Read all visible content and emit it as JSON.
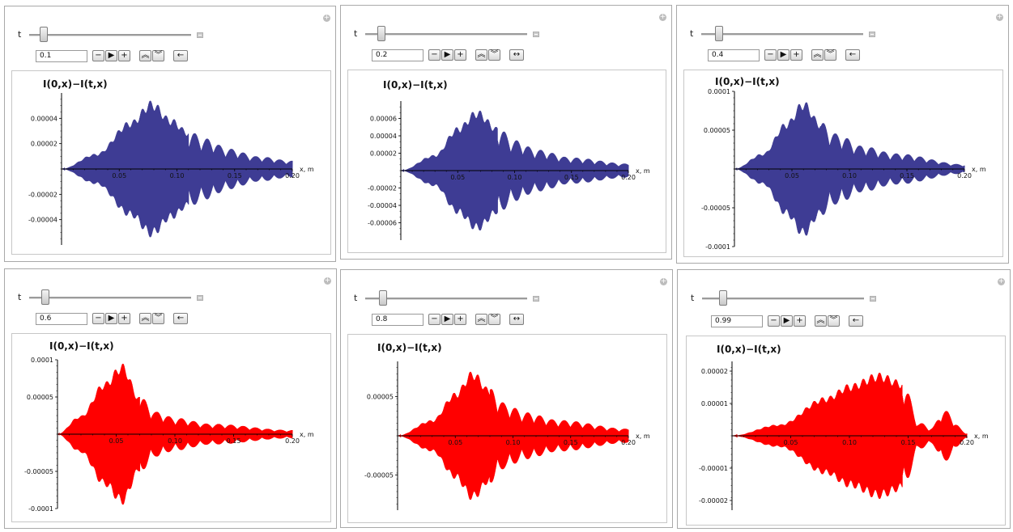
{
  "controls": {
    "param_name": "t",
    "buttons": {
      "decrement": "−",
      "play": "▶",
      "increment": "+",
      "faster": "︽",
      "slower": "︾",
      "direction_backward": "←",
      "direction_bounce": "↔"
    }
  },
  "panels": [
    {
      "t_value": "0.1",
      "slider_fraction": 0.09,
      "direction": "←",
      "color": "#3e3c94"
    },
    {
      "t_value": "0.2",
      "slider_fraction": 0.1,
      "direction": "↔",
      "color": "#3e3c94"
    },
    {
      "t_value": "0.4",
      "slider_fraction": 0.11,
      "direction": "←",
      "color": "#3e3c94"
    },
    {
      "t_value": "0.6",
      "slider_fraction": 0.1,
      "direction": "←",
      "color": "#ff0000"
    },
    {
      "t_value": "0.8",
      "slider_fraction": 0.11,
      "direction": "↔",
      "color": "#ff0000"
    },
    {
      "t_value": "0.99",
      "slider_fraction": 0.13,
      "direction": "←",
      "color": "#ff0000"
    }
  ],
  "chart_data": [
    {
      "type": "area",
      "title": "I(0,x)−I(t,x)",
      "xlabel": "x, m",
      "ylabel": "",
      "xlim": [
        0,
        0.2
      ],
      "ylim": [
        -6e-05,
        6e-05
      ],
      "xticks": [
        "0.05",
        "0.10",
        "0.15",
        "0.20"
      ],
      "yticks": [
        {
          "v": 4e-05,
          "label": "0.00004"
        },
        {
          "v": 2e-05,
          "label": "0.00002"
        },
        {
          "v": -2e-05,
          "label": "-0.00002"
        },
        {
          "v": -4e-05,
          "label": "-0.00004"
        }
      ],
      "color": "#3e3c94",
      "series": [
        {
          "x": [
            0,
            0.03,
            0.06,
            0.078,
            0.095,
            0.11,
            0.125,
            0.145,
            0.17,
            0.2
          ],
          "values": [
            0,
            1.2e-05,
            3.8e-05,
            5.4e-05,
            4e-05,
            3e-05,
            2.4e-05,
            1.6e-05,
            1e-05,
            6.5e-06
          ]
        }
      ]
    },
    {
      "type": "area",
      "title": "I(0,x)−I(t,x)",
      "xlabel": "x, m",
      "ylabel": "",
      "xlim": [
        0,
        0.2
      ],
      "ylim": [
        -8e-05,
        8e-05
      ],
      "xticks": [
        "0.05",
        "0.10",
        "0.15",
        "0.20"
      ],
      "yticks": [
        {
          "v": 6e-05,
          "label": "0.00006"
        },
        {
          "v": 4e-05,
          "label": "0.00004"
        },
        {
          "v": 2e-05,
          "label": "0.00002"
        },
        {
          "v": -2e-05,
          "label": "-0.00002"
        },
        {
          "v": -4e-05,
          "label": "-0.00004"
        },
        {
          "v": -6e-05,
          "label": "-0.00006"
        }
      ],
      "color": "#3e3c94",
      "series": [
        {
          "x": [
            0,
            0.03,
            0.05,
            0.067,
            0.085,
            0.1,
            0.12,
            0.15,
            0.2
          ],
          "values": [
            0,
            1.8e-05,
            5e-05,
            7e-05,
            5e-05,
            3.5e-05,
            2.4e-05,
            1.5e-05,
            8e-06
          ]
        }
      ]
    },
    {
      "type": "area",
      "title": "I(0,x)−I(t,x)",
      "xlabel": "x, m",
      "ylabel": "",
      "xlim": [
        0,
        0.2
      ],
      "ylim": [
        -0.0001,
        0.0001
      ],
      "xticks": [
        "0.05",
        "0.10",
        "0.15",
        "0.20"
      ],
      "yticks": [
        {
          "v": 0.0001,
          "label": "0.0001"
        },
        {
          "v": 5e-05,
          "label": "0.00005"
        },
        {
          "v": -5e-05,
          "label": "-0.00005"
        },
        {
          "v": -0.0001,
          "label": "-0.0001"
        }
      ],
      "color": "#3e3c94",
      "series": [
        {
          "x": [
            0,
            0.025,
            0.045,
            0.06,
            0.075,
            0.09,
            0.11,
            0.14,
            0.2
          ],
          "values": [
            0,
            2e-05,
            6e-05,
            8.8e-05,
            6e-05,
            4.5e-05,
            3e-05,
            2e-05,
            6e-06
          ]
        }
      ]
    },
    {
      "type": "area",
      "title": "I(0,x)−I(t,x)",
      "xlabel": "x, m",
      "ylabel": "",
      "xlim": [
        0,
        0.2
      ],
      "ylim": [
        -0.0001,
        0.0001
      ],
      "xticks": [
        "0.05",
        "0.10",
        "0.15",
        "0.20"
      ],
      "yticks": [
        {
          "v": 0.0001,
          "label": "0.0001"
        },
        {
          "v": 5e-05,
          "label": "0.00005"
        },
        {
          "v": -5e-05,
          "label": "-0.00005"
        },
        {
          "v": -0.0001,
          "label": "-0.0001"
        }
      ],
      "color": "#ff0000",
      "series": [
        {
          "x": [
            0,
            0.02,
            0.04,
            0.055,
            0.07,
            0.085,
            0.1,
            0.13,
            0.2
          ],
          "values": [
            0,
            2.5e-05,
            7e-05,
            9.5e-05,
            5e-05,
            3e-05,
            2.2e-05,
            1.4e-05,
            5.5e-06
          ]
        }
      ]
    },
    {
      "type": "area",
      "title": "I(0,x)−I(t,x)",
      "xlabel": "x, m",
      "ylabel": "",
      "xlim": [
        0,
        0.2
      ],
      "ylim": [
        -9.5e-05,
        9.5e-05
      ],
      "xticks": [
        "0.05",
        "0.10",
        "0.15",
        "0.20"
      ],
      "yticks": [
        {
          "v": 5e-05,
          "label": "0.00005"
        },
        {
          "v": -5e-05,
          "label": "-0.00005"
        }
      ],
      "color": "#ff0000",
      "series": [
        {
          "x": [
            0,
            0.03,
            0.05,
            0.065,
            0.08,
            0.095,
            0.11,
            0.14,
            0.2
          ],
          "values": [
            0,
            2e-05,
            5.5e-05,
            8.3e-05,
            6e-05,
            4e-05,
            3e-05,
            2e-05,
            9e-06
          ]
        }
      ]
    },
    {
      "type": "area",
      "title": "I(0,x)−I(t,x)",
      "xlabel": "x, m",
      "ylabel": "",
      "xlim": [
        0,
        0.2
      ],
      "ylim": [
        -2.3e-05,
        2.3e-05
      ],
      "xticks": [
        "0.05",
        "0.10",
        "0.15",
        "0.20"
      ],
      "yticks": [
        {
          "v": 2e-05,
          "label": "0.00002"
        },
        {
          "v": 1e-05,
          "label": "0.00001"
        },
        {
          "v": -1e-05,
          "label": "-0.00001"
        },
        {
          "v": -2e-05,
          "label": "-0.00002"
        }
      ],
      "color": "#ff0000",
      "series": [
        {
          "x": [
            0,
            0.04,
            0.08,
            0.1,
            0.125,
            0.145,
            0.16,
            0.17,
            0.18,
            0.2
          ],
          "values": [
            0,
            3.5e-06,
            1.2e-05,
            1.6e-05,
            1.95e-05,
            1.7e-05,
            4e-06,
            2.5e-06,
            8e-06,
            1e-06
          ]
        }
      ]
    }
  ]
}
